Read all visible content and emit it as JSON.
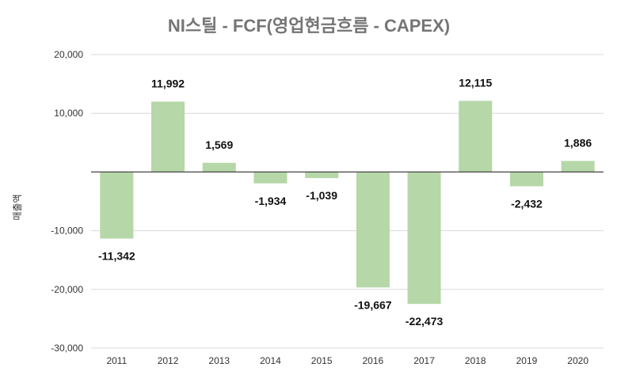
{
  "chart_data": {
    "type": "bar",
    "title": "NI스틸 - FCF(영업현금흐름 - CAPEX)",
    "xlabel": "",
    "ylabel": "매출액",
    "categories": [
      "2011",
      "2012",
      "2013",
      "2014",
      "2015",
      "2016",
      "2017",
      "2018",
      "2019",
      "2020"
    ],
    "values": [
      -11342,
      11992,
      1569,
      -1934,
      -1039,
      -19667,
      -22473,
      12115,
      -2432,
      1886
    ],
    "data_labels": [
      "-11,342",
      "11,992",
      "1,569",
      "-1,934",
      "-1,039",
      "-19,667",
      "-22,473",
      "12,115",
      "-2,432",
      "1,886"
    ],
    "ylim": [
      -30000,
      20000
    ],
    "yticks": [
      20000,
      10000,
      -10000,
      -20000,
      -30000
    ],
    "ytick_labels": [
      "20,000",
      "10,000",
      "-10,000",
      "-20,000",
      "-30,000"
    ],
    "grid": true,
    "legend": "none",
    "bar_color": "#b6d7a8"
  }
}
